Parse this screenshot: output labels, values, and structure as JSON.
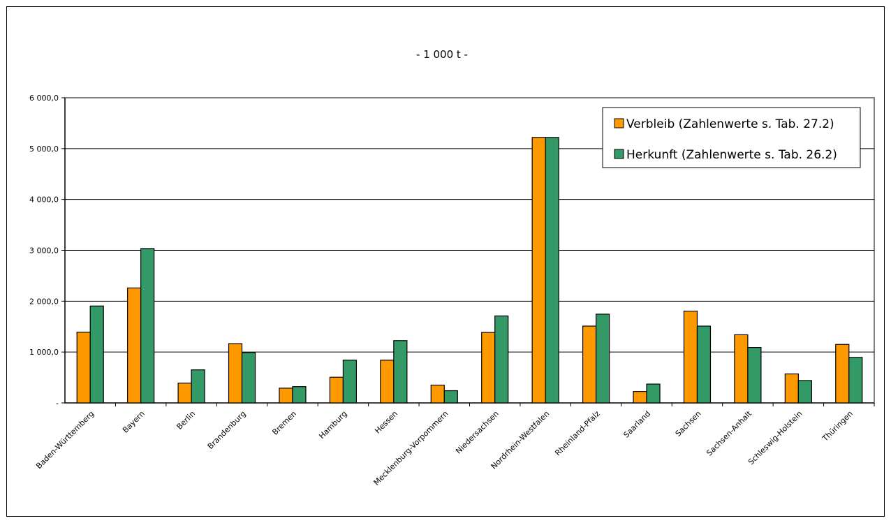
{
  "chart_data": {
    "type": "bar",
    "title": "- 1 000 t -",
    "categories": [
      "Baden-Württemberg",
      "Bayern",
      "Berlin",
      "Brandenburg",
      "Bremen",
      "Hamburg",
      "Hessen",
      "Mecklenburg-Vorpommern",
      "Niedersachsen",
      "Nordrhein-Westfalen",
      "Rheinland-Pfalz",
      "Saarland",
      "Sachsen",
      "Sachsen-Anhalt",
      "Schleswig-Holstein",
      "Thüringen"
    ],
    "series": [
      {
        "name": "Verbleib (Zahlenwerte s. Tab. 27.2)",
        "color": "#ff9900",
        "values": [
          1390,
          2260,
          390,
          1165,
          290,
          505,
          840,
          350,
          1385,
          5220,
          1510,
          225,
          1805,
          1340,
          570,
          1150
        ]
      },
      {
        "name": "Herkunft (Zahlenwerte s. Tab. 26.2)",
        "color": "#339966",
        "values": [
          1905,
          3035,
          650,
          990,
          320,
          840,
          1225,
          240,
          1710,
          5220,
          1745,
          370,
          1510,
          1090,
          440,
          895
        ]
      }
    ],
    "ylim": [
      0,
      6000
    ],
    "yticks": [
      {
        "value": 0,
        "label": "-"
      },
      {
        "value": 1000,
        "label": "1 000,0"
      },
      {
        "value": 2000,
        "label": "2 000,0"
      },
      {
        "value": 3000,
        "label": "3 000,0"
      },
      {
        "value": 4000,
        "label": "4 000,0"
      },
      {
        "value": 5000,
        "label": "5 000,0"
      },
      {
        "value": 6000,
        "label": "6 000,0"
      }
    ],
    "grid": true,
    "legend_position": "top-right",
    "plot_background": "#ffffff",
    "plot_border_color": "#808080"
  }
}
